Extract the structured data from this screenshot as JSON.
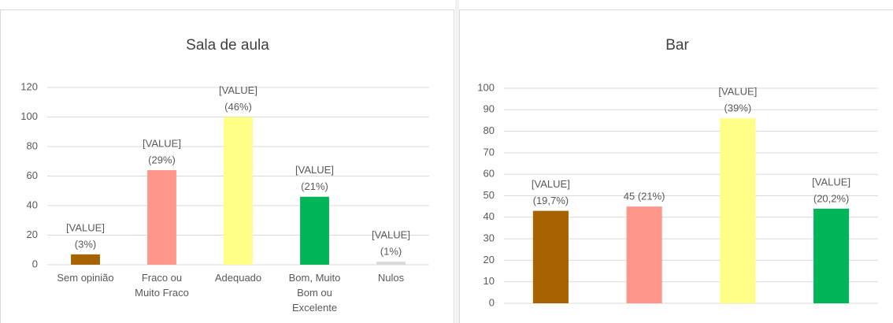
{
  "chart_data": [
    {
      "type": "bar",
      "title": "Sala de aula",
      "categories": [
        "Sem opinião",
        "Fraco ou Muito Fraco",
        "Adequado",
        "Bom, Muito Bom ou Excelente",
        "Nulos"
      ],
      "values": [
        7,
        64,
        100,
        46,
        2
      ],
      "value_labels": [
        [
          "[VALUE]",
          "(3%)"
        ],
        [
          "[VALUE]",
          "(29%)"
        ],
        [
          "[VALUE]",
          "(46%)"
        ],
        [
          "[VALUE]",
          "(21%)"
        ],
        [
          "[VALUE]",
          "(1%)"
        ]
      ],
      "colors": [
        "#a66300",
        "#ff968c",
        "#ffff88",
        "#00b558",
        "#d9d9d9"
      ],
      "ylim": [
        0,
        120
      ],
      "yticks": [
        0,
        20,
        40,
        60,
        80,
        100,
        120
      ],
      "grid": true
    },
    {
      "type": "bar",
      "title": "Bar",
      "categories": [
        null,
        null,
        null,
        null
      ],
      "values": [
        43,
        45,
        86,
        44
      ],
      "value_labels": [
        [
          "[VALUE]",
          "(19,7%)"
        ],
        [
          "45 (21%)"
        ],
        [
          "[VALUE]",
          "(39%)"
        ],
        [
          "[VALUE]",
          "(20,2%)"
        ]
      ],
      "colors": [
        "#a66300",
        "#ff968c",
        "#ffff88",
        "#00b558"
      ],
      "ylim": [
        0,
        100
      ],
      "yticks": [
        0,
        10,
        20,
        30,
        40,
        50,
        60,
        70,
        80,
        90,
        100
      ],
      "grid": true
    }
  ]
}
